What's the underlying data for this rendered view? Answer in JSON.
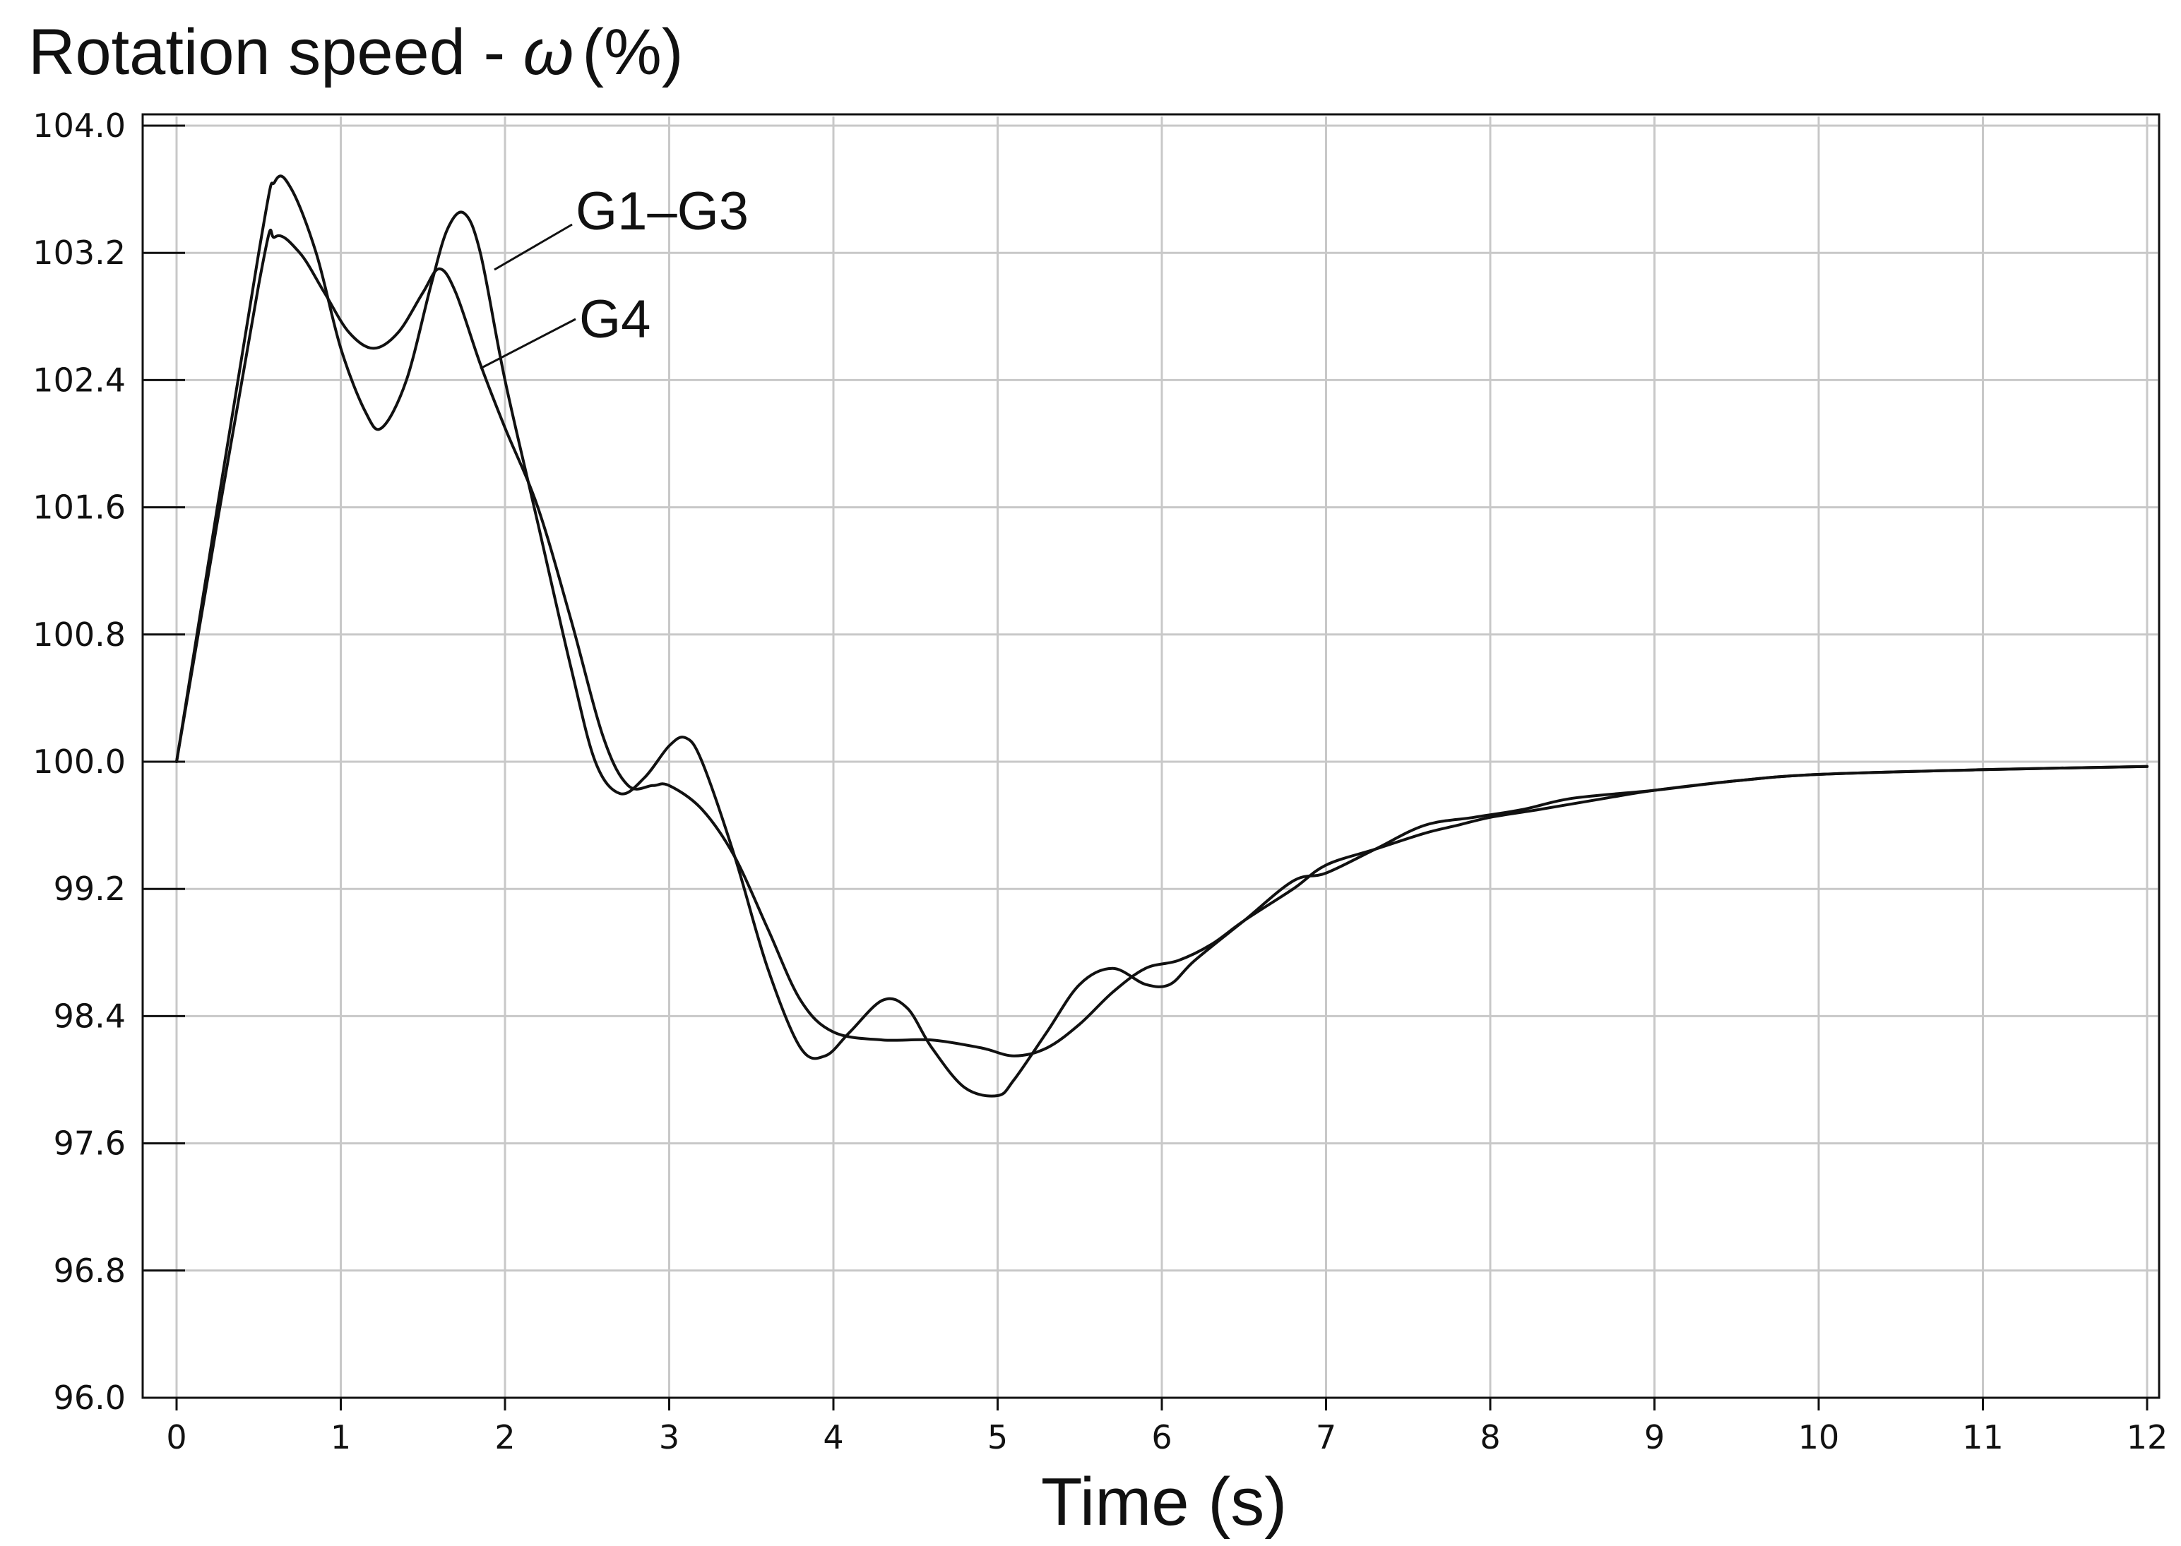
{
  "chart_data": {
    "type": "line",
    "title_text": "Rotation speed - ",
    "title_symbol": "ω",
    "title_unit": "(%)",
    "xlabel": "Time (s)",
    "ylabel": "",
    "xlim": [
      0,
      12
    ],
    "ylim": [
      96.0,
      104.0
    ],
    "x_ticks": [
      "0",
      "1",
      "2",
      "3",
      "4",
      "5",
      "6",
      "7",
      "8",
      "9",
      "10",
      "11",
      "12"
    ],
    "y_ticks": [
      "104.0",
      "103.2",
      "102.4",
      "101.6",
      "100.8",
      "100.0",
      "99.2",
      "98.4",
      "97.6",
      "96.8",
      "96.0"
    ],
    "grid": true,
    "series": [
      {
        "name": "G1–G3",
        "x": [
          0,
          0.5,
          0.6,
          0.7,
          0.85,
          1.0,
          1.15,
          1.25,
          1.4,
          1.55,
          1.65,
          1.75,
          1.85,
          2.0,
          2.2,
          2.4,
          2.55,
          2.7,
          2.85,
          3.0,
          3.1,
          3.2,
          3.4,
          3.6,
          3.8,
          3.95,
          4.1,
          4.3,
          4.45,
          4.6,
          4.8,
          5.0,
          5.1,
          5.3,
          5.5,
          5.7,
          5.9,
          6.05,
          6.2,
          6.5,
          6.8,
          7.0,
          7.3,
          7.6,
          7.9,
          8.2,
          8.5,
          9.0,
          9.5,
          10.0,
          11.0,
          12.0
        ],
        "y": [
          100.0,
          103.2,
          103.65,
          103.6,
          103.2,
          102.6,
          102.2,
          102.1,
          102.4,
          103.0,
          103.35,
          103.45,
          103.2,
          102.4,
          101.5,
          100.6,
          100.0,
          99.8,
          99.9,
          100.1,
          100.15,
          100.0,
          99.4,
          98.7,
          98.2,
          98.15,
          98.3,
          98.5,
          98.45,
          98.2,
          97.95,
          97.9,
          98.0,
          98.3,
          98.6,
          98.7,
          98.6,
          98.6,
          98.75,
          99.0,
          99.25,
          99.3,
          99.45,
          99.6,
          99.65,
          99.7,
          99.77,
          99.82,
          99.88,
          99.92,
          99.95,
          99.97
        ]
      },
      {
        "name": "G4",
        "x": [
          0,
          0.5,
          0.6,
          0.75,
          0.9,
          1.05,
          1.2,
          1.35,
          1.5,
          1.6,
          1.7,
          1.85,
          2.0,
          2.2,
          2.4,
          2.6,
          2.75,
          2.9,
          3.0,
          3.2,
          3.4,
          3.6,
          3.8,
          4.0,
          4.3,
          4.6,
          4.9,
          5.1,
          5.3,
          5.5,
          5.7,
          5.9,
          6.1,
          6.3,
          6.5,
          6.8,
          7.0,
          7.3,
          7.6,
          7.8,
          8.0,
          8.3,
          8.7,
          9.0,
          9.5,
          10.0,
          11.0,
          12.0
        ],
        "y": [
          100.0,
          103.0,
          103.3,
          103.2,
          102.95,
          102.7,
          102.6,
          102.7,
          102.95,
          103.1,
          102.95,
          102.5,
          102.1,
          101.6,
          100.9,
          100.15,
          99.85,
          99.85,
          99.85,
          99.7,
          99.4,
          98.95,
          98.5,
          98.3,
          98.25,
          98.25,
          98.2,
          98.15,
          98.2,
          98.35,
          98.55,
          98.7,
          98.75,
          98.85,
          99.0,
          99.2,
          99.35,
          99.45,
          99.55,
          99.6,
          99.65,
          99.7,
          99.77,
          99.82,
          99.88,
          99.92,
          99.95,
          99.97
        ]
      }
    ],
    "annotations": [
      "G1–G3",
      "G4"
    ]
  }
}
